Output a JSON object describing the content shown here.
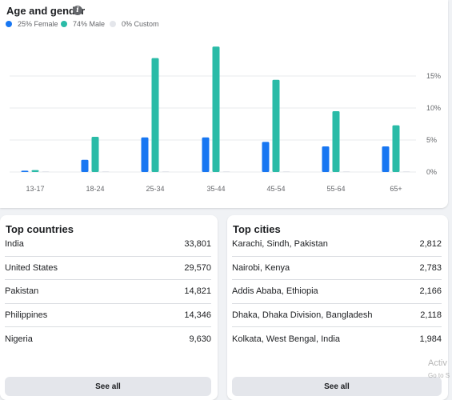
{
  "age_gender": {
    "title": "Age and gender",
    "info_icon": "info-icon",
    "legend": [
      {
        "label": "25% Female",
        "color": "#1877f2"
      },
      {
        "label": "74% Male",
        "color": "#2abba7"
      },
      {
        "label": "0% Custom",
        "color": "#e4e6eb"
      }
    ]
  },
  "chart_data": {
    "type": "bar",
    "categories": [
      "13-17",
      "18-24",
      "25-34",
      "35-44",
      "45-54",
      "55-64",
      "65+"
    ],
    "series": [
      {
        "name": "Female",
        "color": "#1877f2",
        "values": [
          0.2,
          1.9,
          5.4,
          5.4,
          4.7,
          4.0,
          4.0
        ]
      },
      {
        "name": "Male",
        "color": "#2abba7",
        "values": [
          0.3,
          5.5,
          17.8,
          19.6,
          14.4,
          9.5,
          7.3
        ]
      },
      {
        "name": "Custom",
        "color": "#e4e6eb",
        "values": [
          0,
          0,
          0,
          0,
          0,
          0,
          0
        ]
      }
    ],
    "yticks": [
      "15%",
      "10%",
      "5%",
      "0%"
    ],
    "ytick_values": [
      15,
      10,
      5,
      0
    ],
    "ylim": [
      0,
      20
    ],
    "grid": true
  },
  "top_countries": {
    "title": "Top countries",
    "rows": [
      {
        "name": "India",
        "value": "33,801"
      },
      {
        "name": "United States",
        "value": "29,570"
      },
      {
        "name": "Pakistan",
        "value": "14,821"
      },
      {
        "name": "Philippines",
        "value": "14,346"
      },
      {
        "name": "Nigeria",
        "value": "9,630"
      }
    ],
    "see_all": "See all"
  },
  "top_cities": {
    "title": "Top cities",
    "rows": [
      {
        "name": "Karachi, Sindh, Pakistan",
        "value": "2,812"
      },
      {
        "name": "Nairobi, Kenya",
        "value": "2,783"
      },
      {
        "name": "Addis Ababa, Ethiopia",
        "value": "2,166"
      },
      {
        "name": "Dhaka, Dhaka Division, Bangladesh",
        "value": "2,118"
      },
      {
        "name": "Kolkata, West Bengal, India",
        "value": "1,984"
      }
    ],
    "see_all": "See all"
  },
  "watermark": {
    "line1": "Activ",
    "line2": "Go to S"
  }
}
